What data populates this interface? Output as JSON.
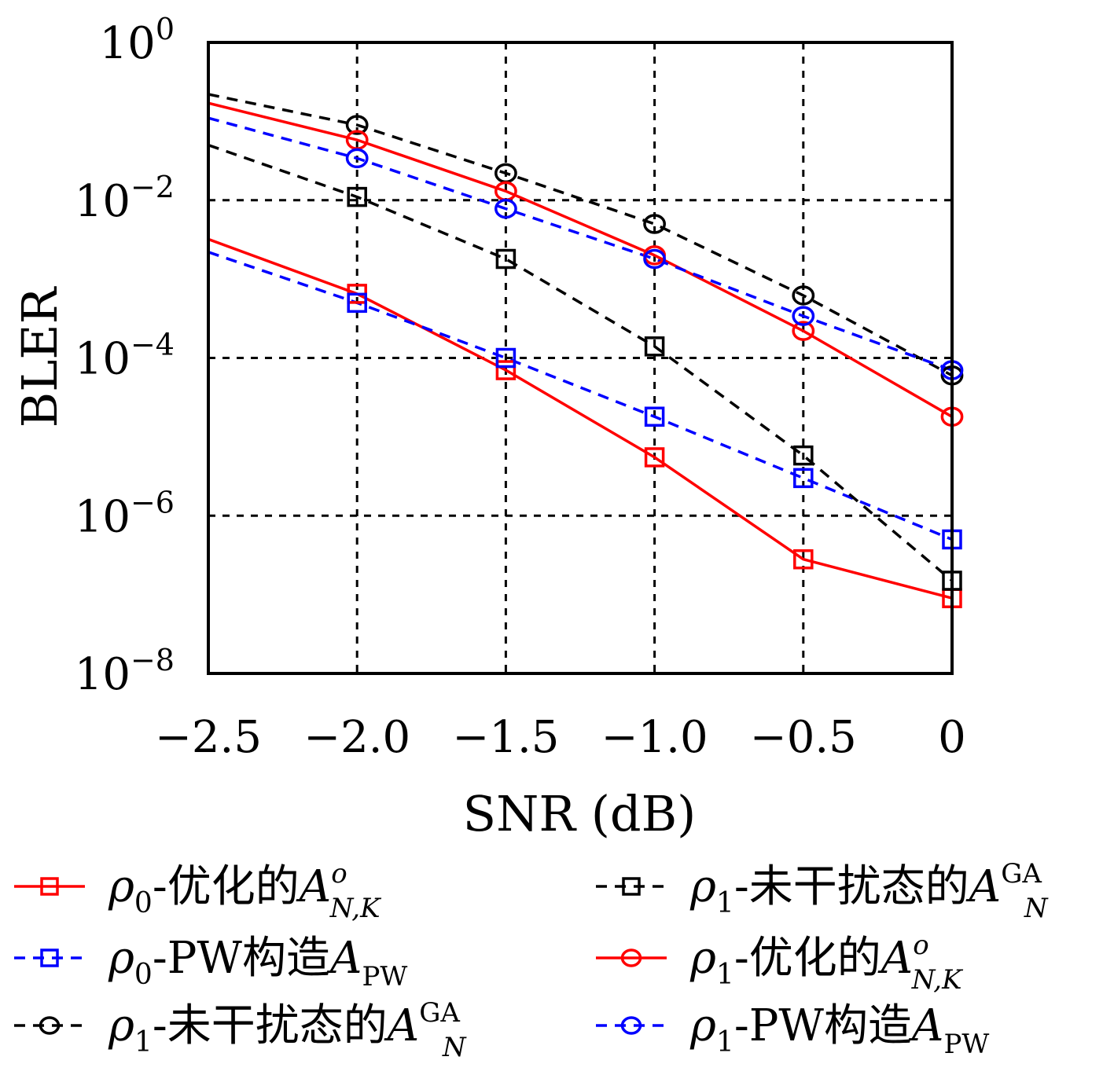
{
  "chart_data": {
    "type": "line",
    "xlabel": "SNR (dB)",
    "ylabel": "BLER",
    "xlim": [
      -2.5,
      0
    ],
    "ylim": [
      1e-08,
      1
    ],
    "yscale": "log",
    "grid": true,
    "x_ticks": [
      {
        "value": -2.5,
        "label": "−2.5"
      },
      {
        "value": -2.0,
        "label": "−2.0"
      },
      {
        "value": -1.5,
        "label": "−1.5"
      },
      {
        "value": -1.0,
        "label": "−1.0"
      },
      {
        "value": -0.5,
        "label": "−0.5"
      },
      {
        "value": 0,
        "label": "0"
      }
    ],
    "y_ticks": [
      {
        "value": 1,
        "base": "10",
        "exp": "0"
      },
      {
        "value": 0.01,
        "base": "10",
        "exp": "−2"
      },
      {
        "value": 0.0001,
        "base": "10",
        "exp": "−4"
      },
      {
        "value": 1e-06,
        "base": "10",
        "exp": "−6"
      },
      {
        "value": 1e-08,
        "base": "10",
        "exp": "−8"
      }
    ],
    "legend_position": "bottom",
    "series": [
      {
        "name": "ρ0-优化的A o N,K",
        "label": {
          "rho": "ρ",
          "rho_sub": "0",
          "text": "-优化的",
          "A": "A",
          "sup": "o",
          "sub": "N,K"
        },
        "color": "#ff0000",
        "dash": "solid",
        "marker": "square",
        "x": [
          -2.5,
          -2.0,
          -1.5,
          -1.0,
          -0.5,
          0
        ],
        "y": [
          0.0032,
          0.00065,
          7e-05,
          5.5e-06,
          2.8e-07,
          9e-08
        ]
      },
      {
        "name": "ρ0-PW构造A PW",
        "label": {
          "rho": "ρ",
          "rho_sub": "0",
          "text": "-PW构造",
          "A": "A",
          "sup": "",
          "sub": "PW"
        },
        "color": "#0000ff",
        "dash": "dashed",
        "marker": "square",
        "x": [
          -2.5,
          -2.0,
          -1.5,
          -1.0,
          -0.5,
          0
        ],
        "y": [
          0.0022,
          0.0005,
          0.0001,
          1.8e-05,
          3e-06,
          5e-07
        ]
      },
      {
        "name": "ρ1-未干扰态的A GA N",
        "label": {
          "rho": "ρ",
          "rho_sub": "1",
          "text": "-未干扰态的",
          "A": "A",
          "sup": "GA",
          "sub": "N"
        },
        "color": "#000000",
        "dash": "dashed",
        "marker": "circle",
        "x": [
          -2.5,
          -2.0,
          -1.5,
          -1.0,
          -0.5,
          0
        ],
        "y": [
          0.22,
          0.09,
          0.022,
          0.005,
          0.00062,
          6e-05
        ]
      },
      {
        "name": "ρ1-未干扰态的A GA N",
        "label": {
          "rho": "ρ",
          "rho_sub": "1",
          "text": "-未干扰态的",
          "A": "A",
          "sup": "GA",
          "sub": "N"
        },
        "color": "#000000",
        "dash": "dashed",
        "marker": "square",
        "x": [
          -2.5,
          -2.0,
          -1.5,
          -1.0,
          -0.5,
          0
        ],
        "y": [
          0.05,
          0.011,
          0.0018,
          0.00014,
          5.8e-06,
          1.5e-07
        ]
      },
      {
        "name": "ρ1-优化的A o N,K",
        "label": {
          "rho": "ρ",
          "rho_sub": "1",
          "text": "-优化的",
          "A": "A",
          "sup": "o",
          "sub": "N,K"
        },
        "color": "#ff0000",
        "dash": "solid",
        "marker": "circle",
        "x": [
          -2.5,
          -2.0,
          -1.5,
          -1.0,
          -0.5,
          0
        ],
        "y": [
          0.17,
          0.058,
          0.013,
          0.002,
          0.00022,
          1.8e-05
        ]
      },
      {
        "name": "ρ1-PW构造A PW",
        "label": {
          "rho": "ρ",
          "rho_sub": "1",
          "text": "-PW构造",
          "A": "A",
          "sup": "",
          "sub": "PW"
        },
        "color": "#0000ff",
        "dash": "dashed",
        "marker": "circle",
        "x": [
          -2.5,
          -2.0,
          -1.5,
          -1.0,
          -0.5,
          0
        ],
        "y": [
          0.11,
          0.034,
          0.0078,
          0.0018,
          0.00034,
          7e-05
        ]
      }
    ],
    "legend_order": [
      0,
      3,
      1,
      4,
      2,
      5
    ]
  }
}
